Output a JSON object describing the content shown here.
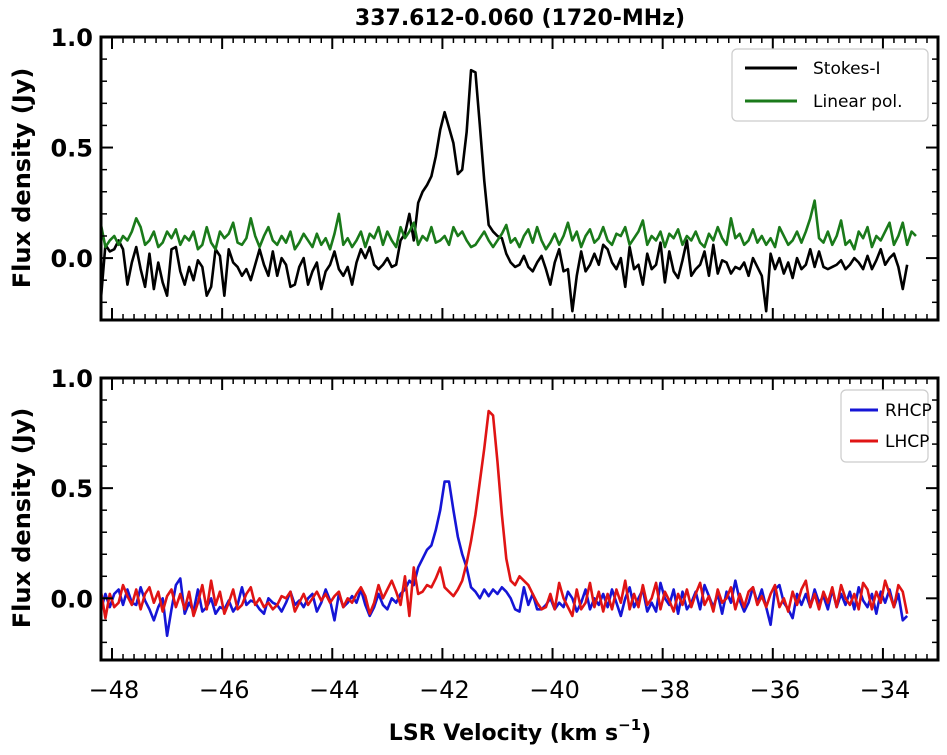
{
  "chart_data": {
    "type": "line",
    "title": "337.612-0.060 (1720-MHz)",
    "xlabel": "LSR Velocity (km s",
    "xlabel_sup": "−1",
    "xlabel_end": ")",
    "xlim": [
      -48.2,
      -33
    ],
    "xticks": [
      -48,
      -46,
      -44,
      -42,
      -40,
      -38,
      -36,
      -34
    ],
    "xtick_labels": [
      "−48",
      "−46",
      "−44",
      "−42",
      "−40",
      "−38",
      "−36",
      "−34"
    ],
    "x_step": 0.08,
    "panels": [
      {
        "ylabel": "Flux density (Jy)",
        "ylim": [
          -0.28,
          1.0
        ],
        "yticks": [
          0.0,
          0.5,
          1.0
        ],
        "ytick_labels": [
          "0.0",
          "0.5",
          "1.0"
        ],
        "legend": "top-right",
        "series": [
          {
            "name": "Stokes-I",
            "color": "#000000",
            "values": [
              -0.18,
              0.06,
              0.03,
              0.04,
              0.08,
              0.04,
              -0.12,
              -0.02,
              0.05,
              -0.05,
              -0.13,
              0.02,
              -0.14,
              -0.02,
              -0.11,
              -0.17,
              0.04,
              0.05,
              -0.06,
              -0.12,
              -0.04,
              -0.1,
              -0.01,
              -0.04,
              -0.17,
              -0.13,
              0.04,
              0.01,
              -0.17,
              0.04,
              -0.02,
              -0.04,
              -0.08,
              -0.05,
              -0.1,
              -0.03,
              0.04,
              -0.03,
              -0.08,
              0.03,
              -0.08,
              0.0,
              -0.03,
              -0.13,
              -0.12,
              -0.04,
              0.0,
              -0.12,
              -0.06,
              -0.02,
              -0.14,
              -0.06,
              -0.03,
              0.03,
              -0.05,
              -0.08,
              -0.04,
              -0.12,
              -0.02,
              0.04,
              0.0,
              0.05,
              -0.03,
              -0.05,
              -0.03,
              0.0,
              -0.04,
              -0.03,
              0.08,
              0.11,
              0.2,
              0.08,
              0.25,
              0.3,
              0.33,
              0.37,
              0.46,
              0.58,
              0.66,
              0.59,
              0.52,
              0.38,
              0.4,
              0.57,
              0.85,
              0.84,
              0.6,
              0.35,
              0.15,
              0.12,
              0.1,
              0.09,
              0.02,
              -0.02,
              -0.04,
              -0.03,
              0.01,
              -0.04,
              -0.06,
              -0.02,
              0.01,
              -0.05,
              -0.12,
              -0.02,
              0.04,
              -0.06,
              -0.05,
              -0.24,
              -0.08,
              0.03,
              -0.06,
              -0.03,
              0.02,
              -0.03,
              0.06,
              0.04,
              -0.02,
              -0.05,
              0.0,
              -0.13,
              0.05,
              -0.05,
              -0.03,
              -0.12,
              0.02,
              -0.05,
              -0.03,
              0.07,
              -0.11,
              0.03,
              -0.06,
              -0.09,
              -0.01,
              0.08,
              -0.08,
              -0.05,
              -0.03,
              0.03,
              -0.08,
              0.06,
              -0.07,
              -0.01,
              -0.02,
              -0.07,
              -0.04,
              -0.05,
              -0.02,
              -0.08,
              0.0,
              -0.04,
              -0.08,
              -0.24,
              0.02,
              -0.05,
              0.0,
              -0.07,
              -0.02,
              -0.09,
              0.0,
              -0.05,
              -0.03,
              0.04,
              -0.04,
              0.03,
              -0.04,
              -0.05,
              -0.04,
              -0.03,
              -0.01,
              -0.05,
              -0.03,
              0.0,
              -0.02,
              -0.05,
              0.01,
              -0.05,
              -0.01,
              0.04,
              -0.03,
              0.0,
              0.02,
              -0.04,
              -0.14,
              -0.03
            ]
          },
          {
            "name": "Linear pol.",
            "color": "#1a7a1a",
            "values": [
              0.15,
              0.05,
              0.08,
              0.1,
              0.06,
              0.1,
              0.08,
              0.12,
              0.18,
              0.14,
              0.06,
              0.08,
              0.12,
              0.05,
              0.07,
              0.12,
              0.09,
              0.13,
              0.06,
              0.1,
              0.08,
              0.12,
              0.04,
              0.06,
              0.14,
              0.07,
              0.04,
              0.12,
              0.09,
              0.11,
              0.16,
              0.07,
              0.06,
              0.09,
              0.18,
              0.1,
              0.05,
              0.1,
              0.14,
              0.08,
              0.06,
              0.1,
              0.07,
              0.12,
              0.04,
              0.07,
              0.11,
              0.08,
              0.05,
              0.11,
              0.06,
              0.09,
              0.04,
              0.11,
              0.2,
              0.06,
              0.09,
              0.05,
              0.08,
              0.12,
              0.05,
              0.11,
              0.09,
              0.14,
              0.06,
              0.12,
              0.08,
              0.05,
              0.14,
              0.09,
              0.12,
              0.16,
              0.06,
              0.1,
              0.08,
              0.14,
              0.07,
              0.08,
              0.1,
              0.06,
              0.14,
              0.1,
              0.12,
              0.08,
              0.05,
              0.06,
              0.09,
              0.12,
              0.08,
              0.05,
              0.08,
              0.11,
              0.15,
              0.07,
              0.09,
              0.05,
              0.1,
              0.13,
              0.07,
              0.14,
              0.08,
              0.04,
              0.07,
              0.11,
              0.06,
              0.1,
              0.16,
              0.08,
              0.12,
              0.05,
              0.1,
              0.13,
              0.07,
              0.09,
              0.14,
              0.08,
              0.06,
              0.11,
              0.1,
              0.14,
              0.06,
              0.09,
              0.12,
              0.17,
              0.06,
              0.1,
              0.08,
              0.12,
              0.05,
              0.11,
              0.09,
              0.13,
              0.06,
              0.1,
              0.08,
              0.12,
              0.07,
              0.05,
              0.11,
              0.08,
              0.14,
              0.09,
              0.06,
              0.18,
              0.09,
              0.11,
              0.06,
              0.08,
              0.13,
              0.07,
              0.1,
              0.06,
              0.09,
              0.05,
              0.14,
              0.1,
              0.06,
              0.08,
              0.12,
              0.07,
              0.12,
              0.18,
              0.26,
              0.09,
              0.07,
              0.12,
              0.06,
              0.1,
              0.17,
              0.06,
              0.08,
              0.04,
              0.12,
              0.09,
              0.14,
              0.05,
              0.1,
              0.08,
              0.12,
              0.16,
              0.06,
              0.1,
              0.16,
              0.06,
              0.12,
              0.1
            ]
          }
        ]
      },
      {
        "ylabel": "Flux density (Jy)",
        "ylim": [
          -0.28,
          1.0
        ],
        "yticks": [
          0.0,
          0.5,
          1.0
        ],
        "ytick_labels": [
          "0.0",
          "0.5",
          "1.0"
        ],
        "legend": "top-right",
        "series": [
          {
            "name": "RHCP",
            "color": "#1515d6",
            "values": [
              -0.05,
              0.02,
              -0.04,
              0.02,
              0.04,
              -0.03,
              0.04,
              -0.02,
              -0.03,
              0.05,
              -0.01,
              -0.05,
              -0.1,
              -0.04,
              0.0,
              -0.17,
              -0.05,
              0.06,
              0.09,
              -0.07,
              -0.02,
              -0.06,
              0.04,
              -0.06,
              -0.04,
              0.0,
              -0.07,
              -0.04,
              -0.05,
              -0.01,
              -0.06,
              -0.03,
              0.05,
              -0.03,
              -0.01,
              -0.02,
              -0.05,
              -0.07,
              0.0,
              -0.02,
              -0.03,
              -0.06,
              -0.02,
              0.03,
              -0.03,
              -0.01,
              -0.04,
              0.0,
              0.02,
              -0.06,
              -0.02,
              0.04,
              -0.01,
              -0.1,
              0.02,
              -0.04,
              -0.02,
              0.01,
              -0.02,
              0.04,
              -0.03,
              -0.08,
              -0.04,
              0.02,
              -0.03,
              -0.05,
              0.0,
              -0.02,
              0.02,
              0.04,
              0.08,
              0.06,
              0.14,
              0.18,
              0.22,
              0.24,
              0.31,
              0.4,
              0.53,
              0.53,
              0.4,
              0.28,
              0.2,
              0.14,
              0.05,
              0.03,
              0.0,
              0.04,
              0.01,
              0.04,
              0.02,
              0.05,
              0.03,
              0.0,
              -0.05,
              -0.06,
              0.05,
              -0.03,
              0.02,
              -0.05,
              -0.05,
              -0.03,
              0.0,
              -0.05,
              -0.02,
              -0.04,
              0.03,
              0.0,
              -0.06,
              -0.02,
              0.04,
              -0.05,
              0.0,
              -0.03,
              0.02,
              -0.04,
              0.04,
              -0.02,
              -0.08,
              0.0,
              0.05,
              -0.04,
              0.0,
              0.04,
              -0.06,
              -0.02,
              -0.06,
              0.07,
              0.0,
              -0.03,
              0.04,
              -0.07,
              0.03,
              -0.05,
              -0.02,
              0.03,
              -0.05,
              0.06,
              0.01,
              -0.04,
              0.02,
              -0.07,
              0.03,
              -0.02,
              0.08,
              -0.01,
              -0.06,
              -0.02,
              0.05,
              -0.02,
              0.04,
              -0.04,
              -0.12,
              0.04,
              0.06,
              -0.02,
              -0.05,
              -0.09,
              0.02,
              -0.03,
              0.02,
              -0.04,
              0.04,
              -0.02,
              0.01,
              -0.05,
              0.04,
              -0.04,
              0.02,
              -0.03,
              0.03,
              -0.05,
              0.05,
              -0.01,
              -0.04,
              0.02,
              -0.07,
              0.03,
              -0.02,
              0.04,
              -0.04,
              0.02,
              -0.1,
              -0.08
            ]
          },
          {
            "name": "LHCP",
            "color": "#e01414",
            "values": [
              0.03,
              -0.09,
              0.02,
              -0.04,
              -0.02,
              0.06,
              0.01,
              -0.03,
              0.04,
              -0.05,
              0.02,
              0.05,
              -0.02,
              0.03,
              -0.06,
              0.01,
              0.04,
              -0.04,
              0.02,
              -0.05,
              0.03,
              -0.08,
              -0.02,
              0.06,
              -0.05,
              0.08,
              -0.03,
              0.03,
              -0.07,
              -0.02,
              0.04,
              -0.05,
              -0.03,
              0.02,
              0.05,
              -0.03,
              0.0,
              -0.04,
              -0.02,
              -0.05,
              -0.03,
              0.01,
              0.0,
              0.03,
              -0.06,
              -0.02,
              0.02,
              -0.03,
              0.0,
              0.03,
              -0.01,
              0.02,
              -0.02,
              0.01,
              0.03,
              -0.04,
              0.0,
              -0.02,
              0.02,
              0.05,
              0.01,
              -0.07,
              -0.02,
              0.06,
              0.0,
              0.04,
              0.08,
              0.03,
              -0.03,
              0.1,
              -0.08,
              0.14,
              0.02,
              0.03,
              0.06,
              0.05,
              0.09,
              0.14,
              0.05,
              0.03,
              0.01,
              0.04,
              0.08,
              0.16,
              0.26,
              0.38,
              0.53,
              0.68,
              0.85,
              0.83,
              0.62,
              0.38,
              0.18,
              0.08,
              0.06,
              0.1,
              0.08,
              0.06,
              0.02,
              -0.02,
              -0.05,
              -0.04,
              0.02,
              -0.05,
              0.07,
              0.0,
              -0.04,
              -0.08,
              0.04,
              -0.05,
              -0.02,
              0.07,
              -0.04,
              0.03,
              -0.06,
              0.02,
              -0.05,
              0.04,
              -0.02,
              0.08,
              -0.05,
              0.02,
              -0.04,
              0.06,
              -0.03,
              0.0,
              0.07,
              -0.05,
              0.03,
              -0.01,
              -0.06,
              0.02,
              -0.03,
              0.04,
              -0.04,
              0.02,
              0.07,
              -0.03,
              0.01,
              -0.06,
              0.04,
              -0.02,
              0.0,
              0.05,
              -0.05,
              0.02,
              -0.04,
              0.03,
              0.05,
              -0.03,
              0.01,
              -0.04,
              0.02,
              0.06,
              -0.04,
              0.0,
              -0.06,
              0.03,
              -0.03,
              0.04,
              0.08,
              -0.04,
              0.02,
              -0.05,
              0.03,
              -0.02,
              0.05,
              -0.04,
              0.06,
              0.0,
              -0.03,
              0.02,
              -0.05,
              0.07,
              0.04,
              -0.05,
              0.03,
              -0.02,
              0.08,
              0.02,
              -0.04,
              0.06,
              0.03,
              -0.07
            ]
          }
        ]
      }
    ]
  }
}
